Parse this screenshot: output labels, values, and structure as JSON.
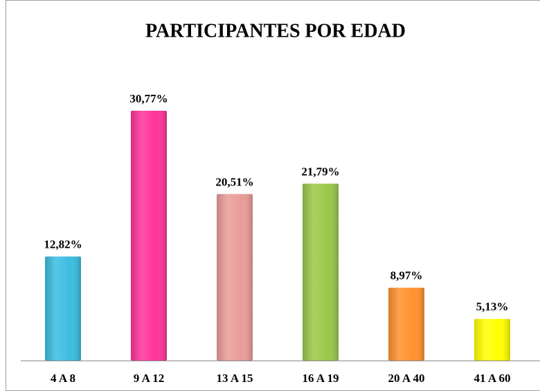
{
  "chart_data": {
    "type": "bar",
    "title": "PARTICIPANTES POR EDAD",
    "categories": [
      "4 A 8",
      "9 A 12",
      "13 A 15",
      "16 A 19",
      "20 A 40",
      "41 A 60"
    ],
    "values": [
      12.82,
      30.77,
      20.51,
      21.79,
      8.97,
      5.13
    ],
    "value_labels": [
      "12,82%",
      "30,77%",
      "20,51%",
      "21,79%",
      "8,97%",
      "5,13%"
    ],
    "colors": [
      "#3bbde0",
      "#ff3399",
      "#e89c98",
      "#99c848",
      "#ff922e",
      "#ffff00"
    ]
  }
}
